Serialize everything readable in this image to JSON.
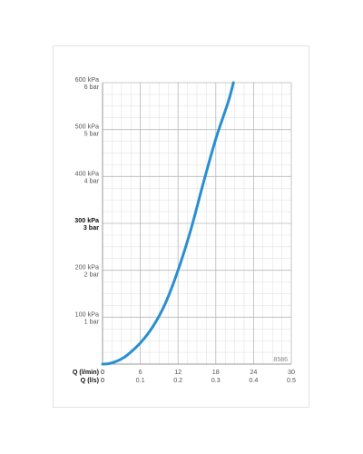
{
  "chart_data": {
    "type": "line",
    "x_primary": {
      "label": "Q (l/min)",
      "range": [
        0,
        30
      ],
      "ticks": [
        "0",
        "6",
        "12",
        "18",
        "24",
        "30"
      ]
    },
    "x_secondary": {
      "label": "Q (l/s)",
      "range": [
        0,
        0.5
      ],
      "ticks": [
        "0",
        "0.1",
        "0.2",
        "0.3",
        "0.4",
        "0.5"
      ]
    },
    "y_axis": {
      "range": [
        0,
        600
      ],
      "unit": "kPa",
      "ticks": [
        {
          "value": 100,
          "kpa": "100 kPa",
          "bar": "1 bar",
          "bold": false
        },
        {
          "value": 200,
          "kpa": "200 kPa",
          "bar": "2 bar",
          "bold": false
        },
        {
          "value": 300,
          "kpa": "300 kPa",
          "bar": "3 bar",
          "bold": true
        },
        {
          "value": 400,
          "kpa": "400 kPa",
          "bar": "4 bar",
          "bold": false
        },
        {
          "value": 500,
          "kpa": "500 kPa",
          "bar": "5 bar",
          "bold": false
        },
        {
          "value": 600,
          "kpa": "600 kPa",
          "bar": "6 bar",
          "bold": false
        }
      ]
    },
    "grid": true,
    "series": [
      {
        "color": "#2a8fd0",
        "x": [
          0,
          1,
          2,
          3,
          4,
          6,
          8,
          10,
          12,
          14,
          16,
          18,
          20,
          20.8
        ],
        "y": [
          0,
          1,
          5,
          11,
          20,
          45,
          80,
          130,
          200,
          285,
          385,
          480,
          560,
          600
        ]
      }
    ],
    "annotation": "8586"
  }
}
